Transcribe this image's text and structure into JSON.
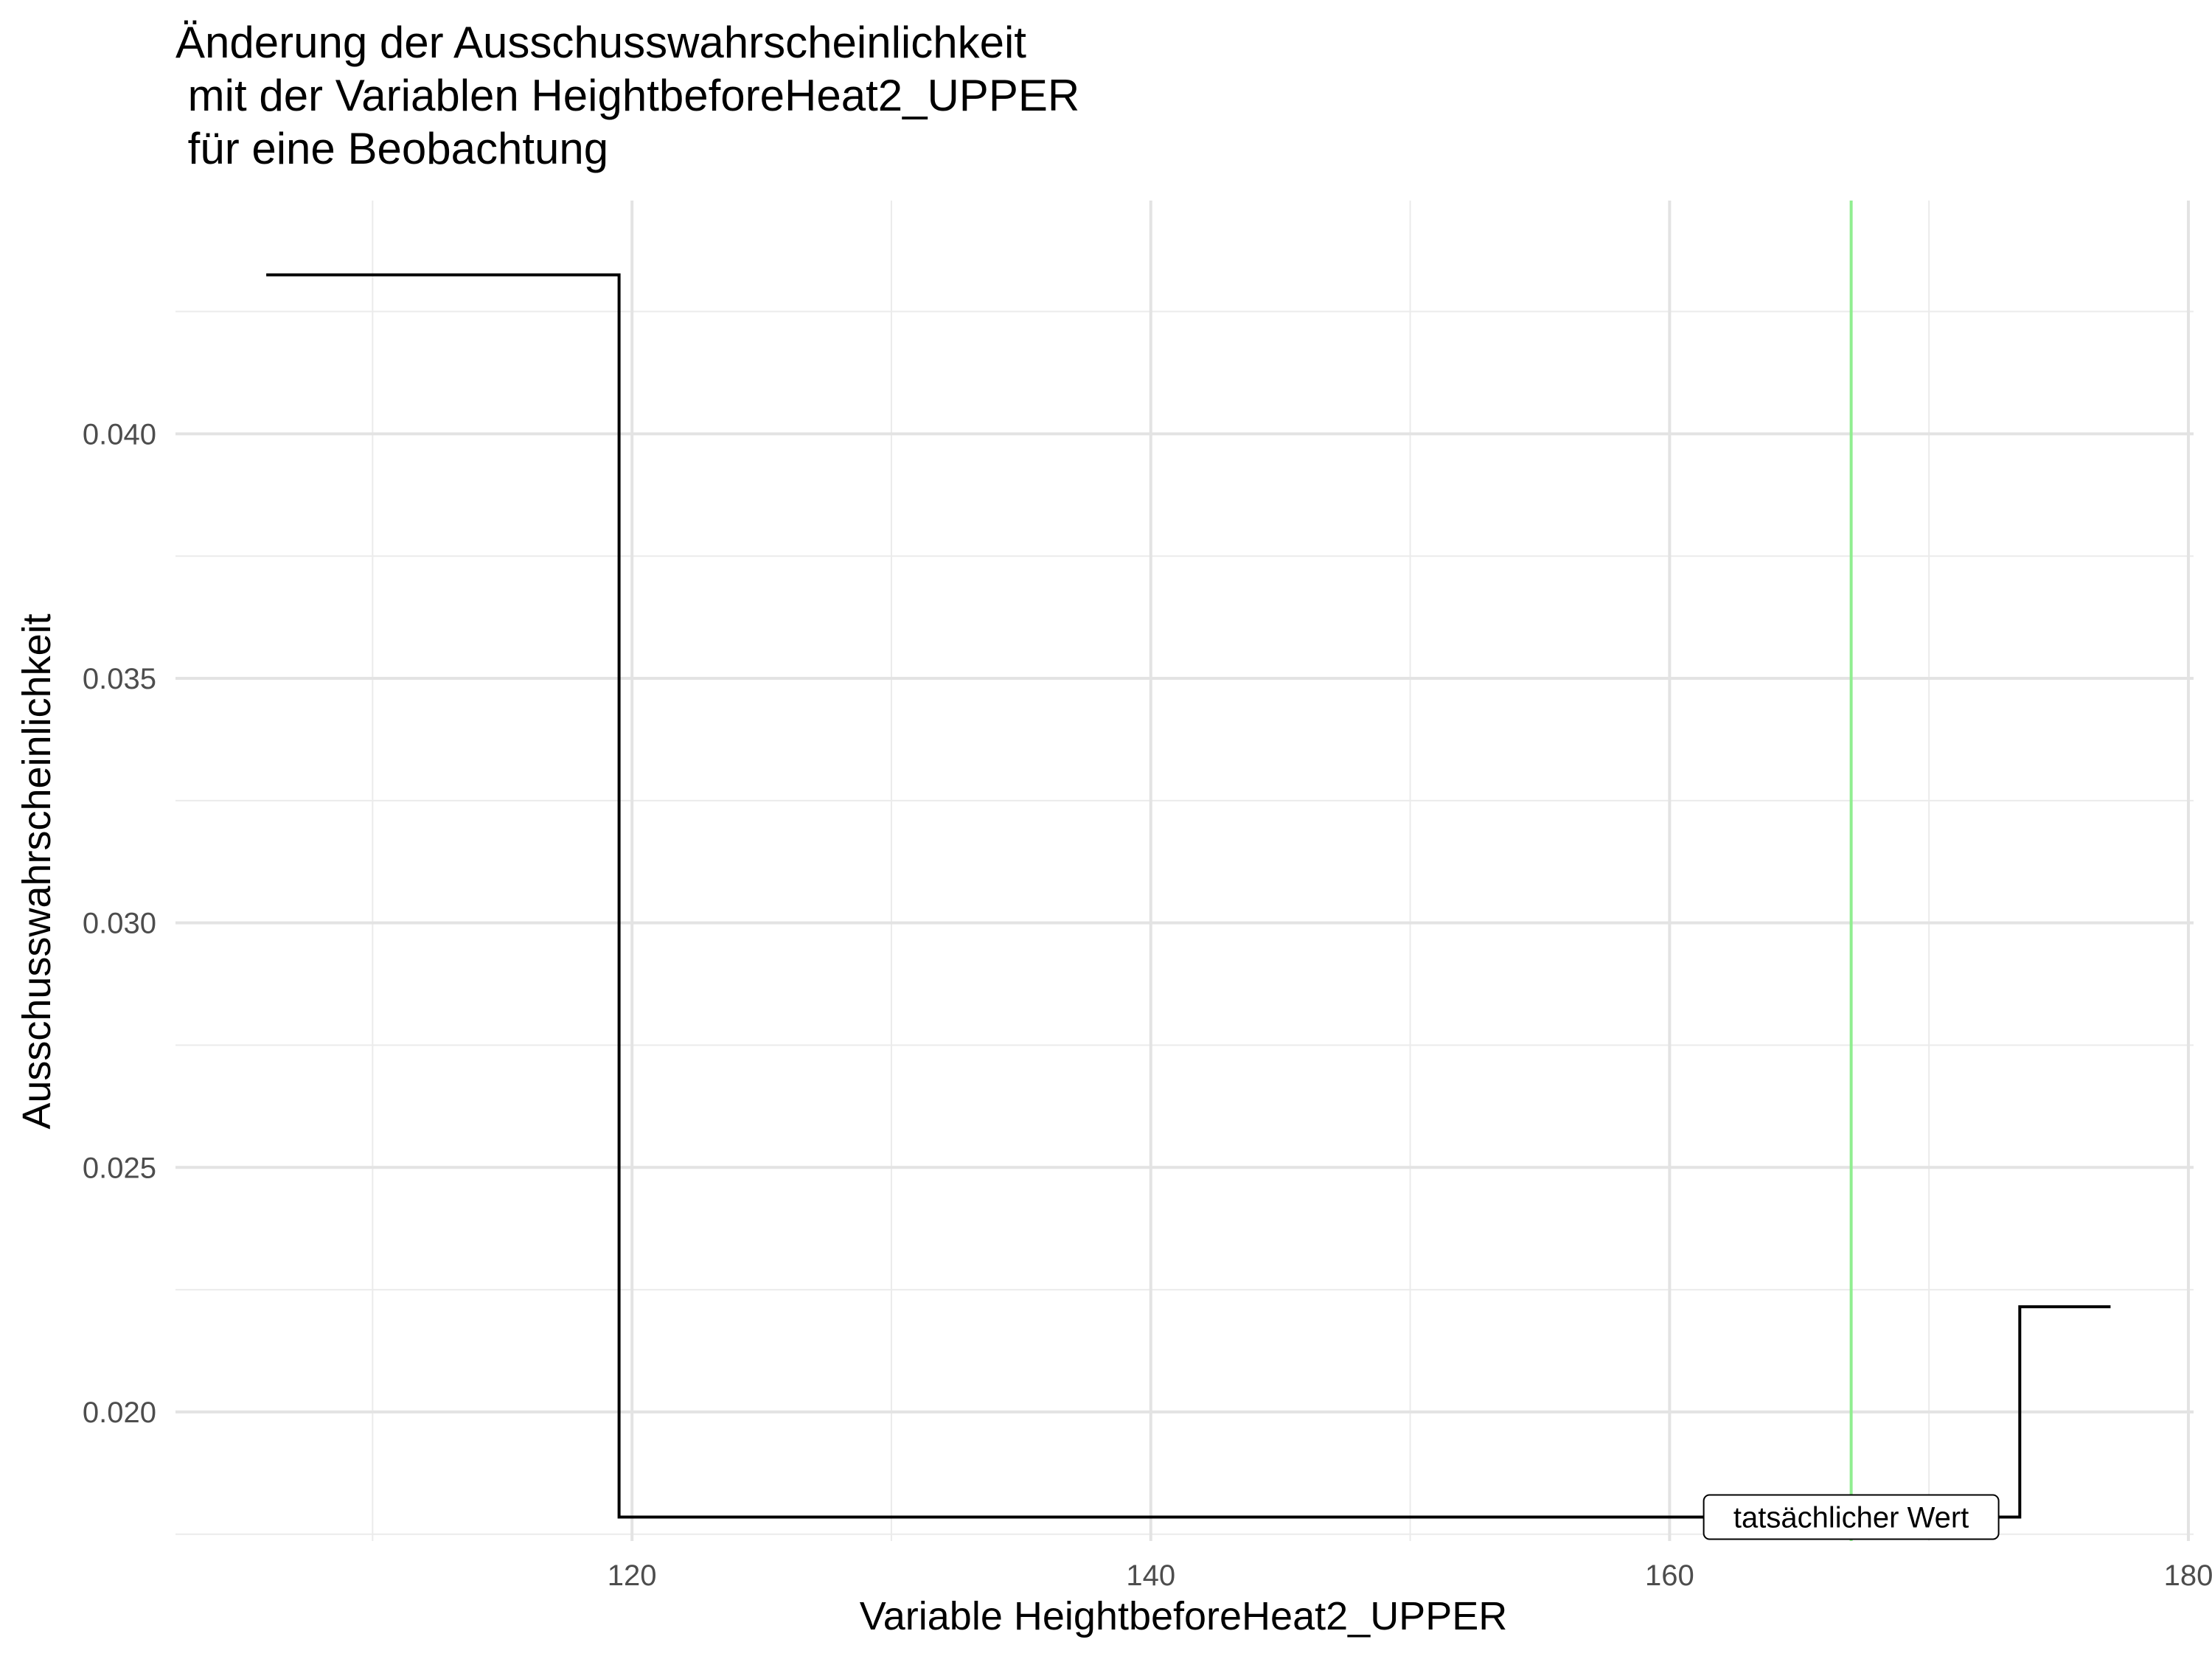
{
  "chart_data": {
    "type": "line",
    "title_lines": [
      "Änderung der Ausschusswahrscheinlichkeit",
      " mit der Variablen HeightbeforeHeat2_UPPER",
      " für eine Beobachtung"
    ],
    "xlabel": "Variable HeightbeforeHeat2_UPPER",
    "ylabel": "Ausschusswahrscheinlichkeit",
    "xlim": [
      102.4,
      180.2
    ],
    "ylim": [
      0.01736,
      0.04477
    ],
    "x_ticks": [
      120,
      140,
      160,
      180
    ],
    "x_tick_labels": [
      "120",
      "140",
      "160",
      "180"
    ],
    "y_ticks": [
      0.02,
      0.025,
      0.03,
      0.035,
      0.04
    ],
    "y_tick_labels": [
      "0.020",
      "0.025",
      "0.030",
      "0.035",
      "0.040"
    ],
    "grid": true,
    "series": [
      {
        "step": true,
        "color": "#000000",
        "points": [
          {
            "x": 105.9,
            "y": 0.04325
          },
          {
            "x": 119.5,
            "y": 0.04325
          },
          {
            "x": 119.5,
            "y": 0.01785
          },
          {
            "x": 173.5,
            "y": 0.01785
          },
          {
            "x": 173.5,
            "y": 0.02215
          },
          {
            "x": 177.0,
            "y": 0.02215
          }
        ]
      }
    ],
    "reference_line": {
      "x": 167.0,
      "color": "#90ee90"
    },
    "annotation": {
      "text": "tatsächlicher Wert",
      "x": 167.0,
      "y": 0.01785
    }
  }
}
